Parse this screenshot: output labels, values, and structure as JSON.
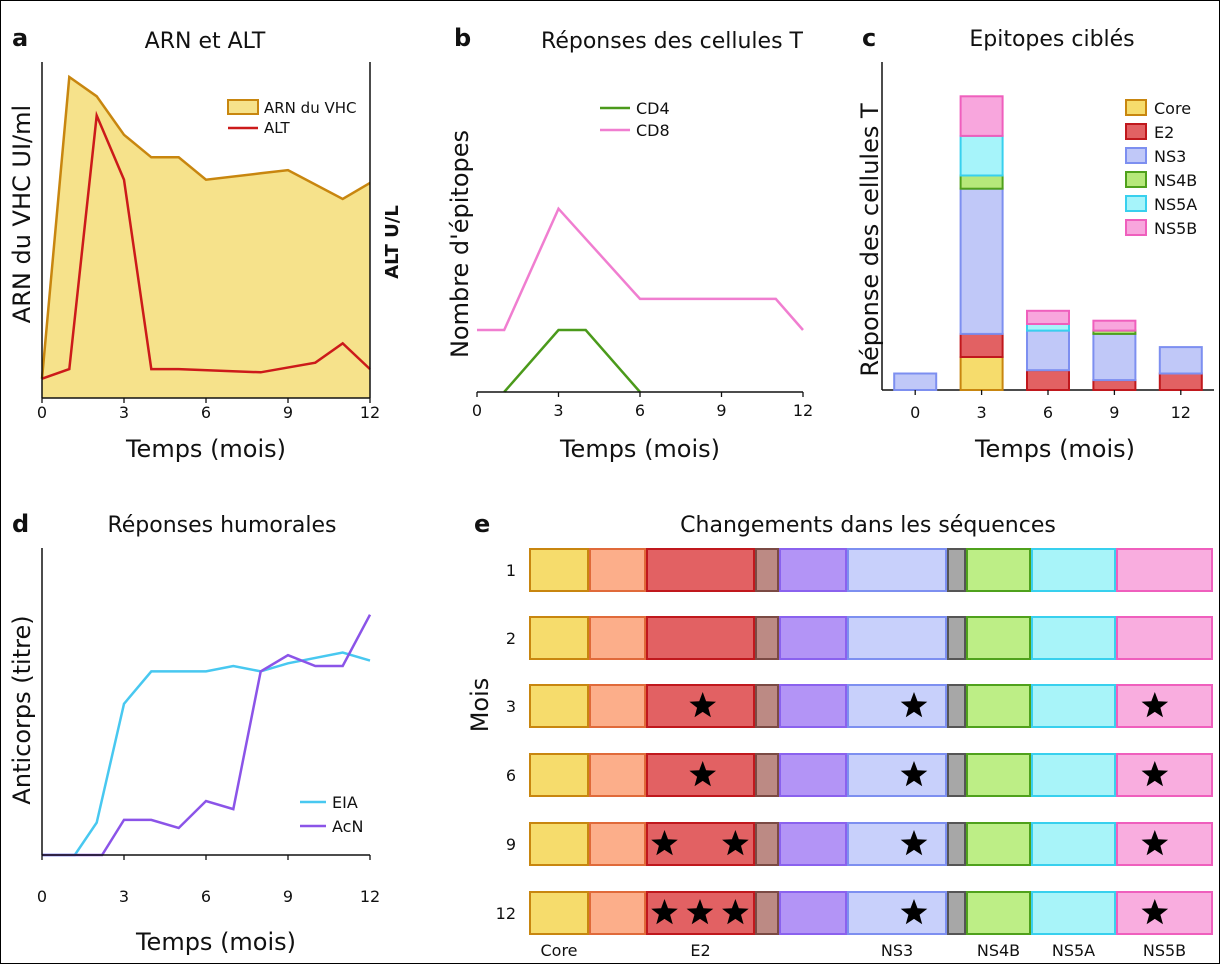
{
  "panels": {
    "a": {
      "letter": "a",
      "title": "ARN et ALT",
      "ylabel": "ARN du VHC UI/ml",
      "ylabel_right": "ALT U/L",
      "xlabel": "Temps (mois)"
    },
    "b": {
      "letter": "b",
      "title": "Réponses des cellules T",
      "ylabel": "Nombre d'épitopes",
      "xlabel": "Temps (mois)"
    },
    "c": {
      "letter": "c",
      "title": "Epitopes ciblés",
      "ylabel": "Réponse des cellules T",
      "xlabel": "Temps (mois)"
    },
    "d": {
      "letter": "d",
      "title": "Réponses humorales",
      "ylabel": "Anticorps (titre)",
      "xlabel": "Temps (mois)"
    },
    "e": {
      "letter": "e",
      "title": "Changements dans les séquences",
      "ylabel": "Mois"
    }
  },
  "chart_data": [
    {
      "panel": "a",
      "type": "area",
      "xticks": [
        0,
        3,
        6,
        9,
        12
      ],
      "xlim": [
        0,
        12
      ],
      "ylim": [
        0,
        100
      ],
      "series": [
        {
          "name": "ARN du VHC",
          "color": "#c8860f",
          "fill": "#f6e28b",
          "x": [
            0,
            1,
            2,
            3,
            4,
            5,
            6,
            8,
            9,
            11,
            12
          ],
          "y": [
            6,
            100,
            94,
            82,
            75,
            75,
            68,
            70,
            71,
            62,
            67
          ]
        },
        {
          "name": "ALT",
          "color": "#cc1a1a",
          "x": [
            0,
            1,
            2,
            3,
            4,
            5,
            8,
            10,
            11,
            12
          ],
          "y": [
            6,
            9,
            88,
            68,
            9,
            9,
            8,
            11,
            17,
            9
          ]
        }
      ]
    },
    {
      "panel": "b",
      "type": "line",
      "xticks": [
        0,
        3,
        6,
        9,
        12
      ],
      "xlim": [
        0,
        12
      ],
      "ylim": [
        0,
        100
      ],
      "series": [
        {
          "name": "CD4",
          "color": "#4b9a1b",
          "x": [
            1,
            3,
            4,
            6
          ],
          "y": [
            0,
            22,
            22,
            0
          ]
        },
        {
          "name": "CD8",
          "color": "#f07ed0",
          "x": [
            0,
            1,
            3,
            6,
            11,
            12
          ],
          "y": [
            22,
            22,
            65,
            33,
            33,
            22
          ]
        }
      ]
    },
    {
      "panel": "c",
      "type": "bar",
      "stacked": true,
      "categories": [
        "0",
        "3",
        "6",
        "9",
        "12"
      ],
      "ylim": [
        0,
        100
      ],
      "series": [
        {
          "name": "Core",
          "color": "#f6dc6c",
          "border": "#c8860f",
          "values": [
            0,
            10,
            0,
            0,
            0
          ]
        },
        {
          "name": "E2",
          "color": "#e26163",
          "border": "#c0181d",
          "values": [
            0,
            7,
            6,
            3,
            5
          ]
        },
        {
          "name": "NS3",
          "color": "#c0c8f8",
          "border": "#7d8ff0",
          "values": [
            5,
            44,
            12,
            14,
            8
          ]
        },
        {
          "name": "NS4B",
          "color": "#b6e87a",
          "border": "#4fa11c",
          "values": [
            0,
            4,
            0,
            1,
            0
          ]
        },
        {
          "name": "NS5A",
          "color": "#a6f4fa",
          "border": "#38d0ee",
          "values": [
            0,
            12,
            2,
            0,
            0
          ]
        },
        {
          "name": "NS5B",
          "color": "#f8a6dd",
          "border": "#ef5fbd",
          "values": [
            0,
            12,
            4,
            3,
            0
          ]
        }
      ]
    },
    {
      "panel": "d",
      "type": "line",
      "xticks": [
        0,
        3,
        6,
        9,
        12
      ],
      "xlim": [
        0,
        12
      ],
      "ylim": [
        0,
        100
      ],
      "series": [
        {
          "name": "EIA",
          "color": "#48c8f0",
          "x": [
            0,
            1.2,
            2,
            3,
            4,
            6,
            7,
            8,
            9,
            11,
            12
          ],
          "y": [
            0,
            0,
            12,
            56,
            68,
            68,
            70,
            68,
            71,
            75,
            72
          ]
        },
        {
          "name": "AcN",
          "color": "#8b54e8",
          "x": [
            0,
            2.2,
            3,
            4,
            5,
            6,
            7,
            8,
            9,
            10,
            11,
            12
          ],
          "y": [
            0,
            0,
            13,
            13,
            10,
            20,
            17,
            68,
            74,
            70,
            70,
            89
          ]
        }
      ]
    },
    {
      "panel": "e",
      "type": "table",
      "rows": [
        "1",
        "2",
        "3",
        "6",
        "9",
        "12"
      ],
      "segments": [
        {
          "label": "Core",
          "color": "#f6dc6c",
          "border": "#c8860f"
        },
        {
          "label": "",
          "color": "#fcae8a",
          "border": "#e06a3a"
        },
        {
          "label": "E2",
          "color": "#e26163",
          "border": "#c0181d"
        },
        {
          "label": "",
          "color": "#bc8a84",
          "border": "#7b4a44"
        },
        {
          "label": "",
          "color": "#b394f6",
          "border": "#8a62ee"
        },
        {
          "label": "NS3",
          "color": "#c8d0fb",
          "border": "#7d8ff0"
        },
        {
          "label": "",
          "color": "#a7a7a7",
          "border": "#555555"
        },
        {
          "label": "NS4B",
          "color": "#bdee86",
          "border": "#4fa11c"
        },
        {
          "label": "NS5A",
          "color": "#a8f4f9",
          "border": "#38d0ee"
        },
        {
          "label": "NS5B",
          "color": "#f9addf",
          "border": "#ef5fbd"
        }
      ],
      "mutations": {
        "1": {
          "E2": 0,
          "NS3": 0,
          "NS5B": 0
        },
        "2": {
          "E2": 0,
          "NS3": 0,
          "NS5B": 0
        },
        "3": {
          "E2": 1,
          "NS3": 1,
          "NS5B": 1
        },
        "6": {
          "E2": 1,
          "NS3": 1,
          "NS5B": 1
        },
        "9": {
          "E2": 2,
          "NS3": 1,
          "NS5B": 1
        },
        "12": {
          "E2": 3,
          "NS3": 1,
          "NS5B": 1
        }
      }
    }
  ]
}
